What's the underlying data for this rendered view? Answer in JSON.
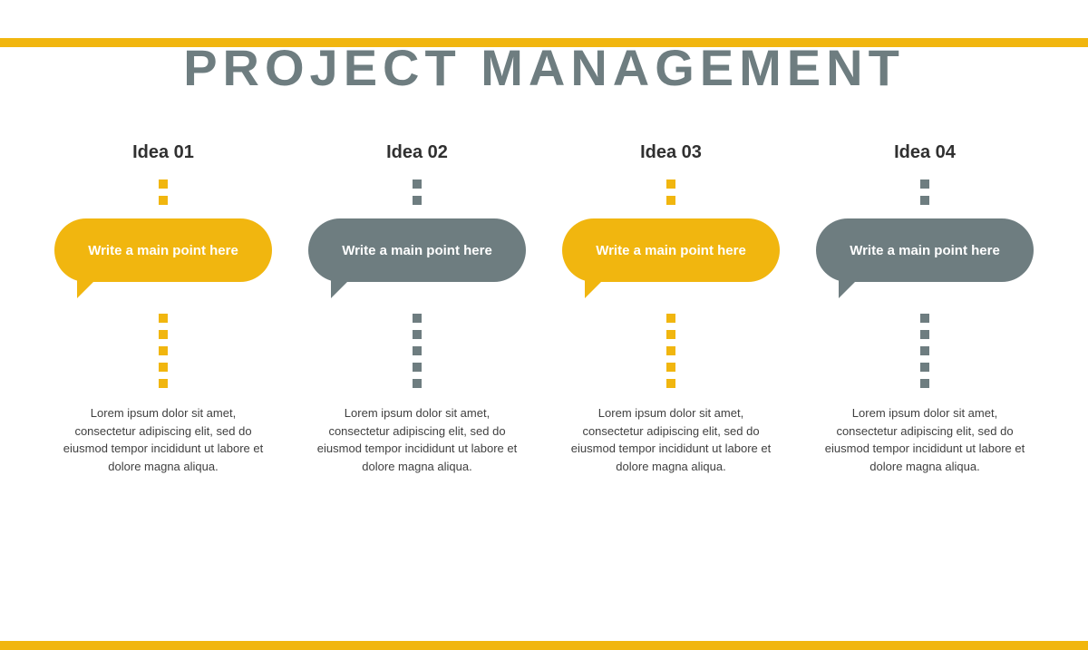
{
  "title": "PROJECT MANAGEMENT",
  "title_color": "#6e7d80",
  "title_fontsize": 56,
  "accent_color": "#f1b60f",
  "gray_color": "#6e7d80",
  "background_color": "#ffffff",
  "border_height": 10,
  "columns": [
    {
      "label": "Idea 01",
      "main_point": "Write a main point here",
      "body": "Lorem ipsum dolor sit amet, consectetur adipiscing elit, sed do eiusmod tempor incididunt ut labore et dolore magna aliqua.",
      "bubble_color": "#f1b60f",
      "dot_color": "#f1b60f"
    },
    {
      "label": "Idea 02",
      "main_point": "Write a main point here",
      "body": "Lorem ipsum dolor sit amet, consectetur adipiscing elit, sed do eiusmod tempor incididunt ut labore et dolore magna aliqua.",
      "bubble_color": "#6e7d80",
      "dot_color": "#6e7d80"
    },
    {
      "label": "Idea 03",
      "main_point": "Write a main point here",
      "body": "Lorem ipsum dolor sit amet, consectetur adipiscing elit, sed do eiusmod tempor incididunt ut labore et dolore magna aliqua.",
      "bubble_color": "#f1b60f",
      "dot_color": "#f1b60f"
    },
    {
      "label": "Idea 04",
      "main_point": "Write a main point here",
      "body": "Lorem ipsum dolor sit amet, consectetur adipiscing elit, sed do eiusmod tempor incididunt ut labore et dolore magna aliqua.",
      "bubble_color": "#6e7d80",
      "dot_color": "#6e7d80"
    }
  ],
  "dots_top_count": 2,
  "dots_bottom_count": 5,
  "dot_size": 10
}
